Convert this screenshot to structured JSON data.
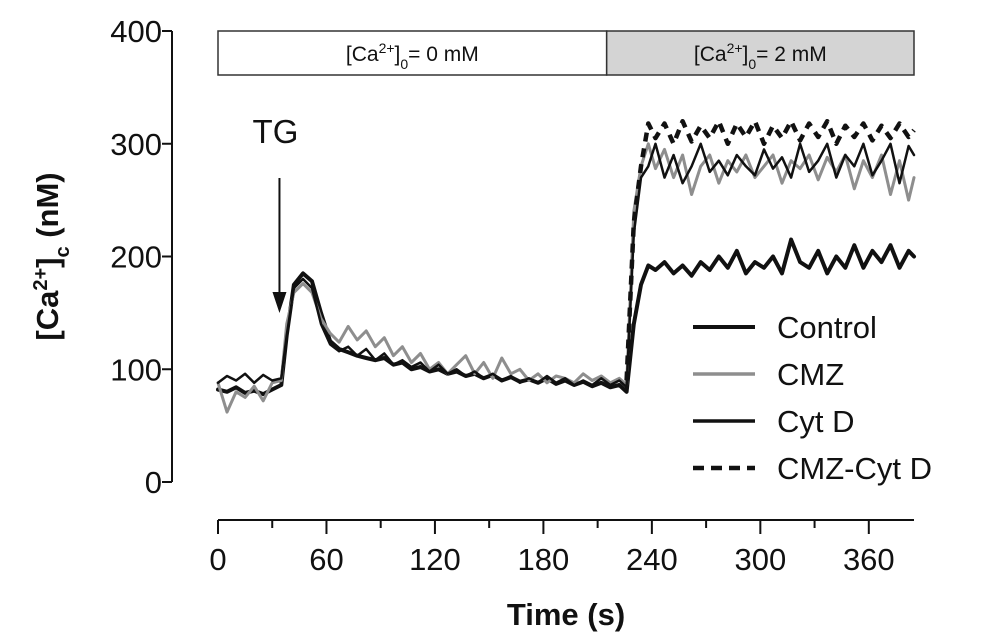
{
  "chart_data": {
    "type": "line",
    "title": "",
    "xlabel": "Time (s)",
    "ylabel": "[Ca2+]c (nM)",
    "ylabel_parts": {
      "pre": "[Ca",
      "sup": "2+",
      "mid": "]",
      "sub": "c",
      "post": " (nM)"
    },
    "xlim": [
      0,
      385
    ],
    "ylim": [
      0,
      400
    ],
    "x_ticks": [
      0,
      60,
      120,
      180,
      240,
      300,
      360
    ],
    "y_ticks": [
      0,
      100,
      200,
      300,
      400
    ],
    "grid": false,
    "legend_position": "bottom-right",
    "bands": [
      {
        "x0": 0,
        "x1": 215,
        "fill": "#ffffff",
        "label_parts": {
          "pre": "[Ca",
          "sup": "2+",
          "mid": "]",
          "sub": "0",
          "post": "= 0 mM"
        }
      },
      {
        "x0": 215,
        "x1": 385,
        "fill": "#d4d4d4",
        "label_parts": {
          "pre": "[Ca",
          "sup": "2+",
          "mid": "]",
          "sub": "0",
          "post": "= 2 mM"
        }
      }
    ],
    "annotations": [
      {
        "text": "TG",
        "x": 34
      }
    ],
    "series": [
      {
        "name": "Control",
        "color": "#111111",
        "style": "solid",
        "width": 4,
        "points": [
          [
            0,
            82
          ],
          [
            5,
            80
          ],
          [
            10,
            84
          ],
          [
            15,
            79
          ],
          [
            20,
            81
          ],
          [
            25,
            78
          ],
          [
            30,
            82
          ],
          [
            35,
            86
          ],
          [
            38,
            130
          ],
          [
            42,
            175
          ],
          [
            47,
            185
          ],
          [
            52,
            178
          ],
          [
            57,
            150
          ],
          [
            62,
            125
          ],
          [
            67,
            118
          ],
          [
            72,
            115
          ],
          [
            77,
            112
          ],
          [
            82,
            110
          ],
          [
            87,
            108
          ],
          [
            92,
            110
          ],
          [
            97,
            104
          ],
          [
            102,
            106
          ],
          [
            107,
            100
          ],
          [
            112,
            102
          ],
          [
            117,
            98
          ],
          [
            122,
            100
          ],
          [
            127,
            96
          ],
          [
            132,
            98
          ],
          [
            137,
            94
          ],
          [
            142,
            96
          ],
          [
            147,
            92
          ],
          [
            152,
            95
          ],
          [
            157,
            90
          ],
          [
            162,
            93
          ],
          [
            167,
            89
          ],
          [
            172,
            91
          ],
          [
            177,
            88
          ],
          [
            182,
            92
          ],
          [
            187,
            87
          ],
          [
            192,
            90
          ],
          [
            197,
            86
          ],
          [
            202,
            89
          ],
          [
            207,
            85
          ],
          [
            212,
            88
          ],
          [
            217,
            84
          ],
          [
            222,
            86
          ],
          [
            226,
            80
          ],
          [
            230,
            140
          ],
          [
            234,
            175
          ],
          [
            238,
            192
          ],
          [
            242,
            188
          ],
          [
            247,
            195
          ],
          [
            252,
            185
          ],
          [
            257,
            192
          ],
          [
            262,
            183
          ],
          [
            267,
            195
          ],
          [
            272,
            188
          ],
          [
            277,
            200
          ],
          [
            282,
            190
          ],
          [
            287,
            205
          ],
          [
            292,
            185
          ],
          [
            297,
            195
          ],
          [
            302,
            190
          ],
          [
            307,
            200
          ],
          [
            312,
            185
          ],
          [
            317,
            215
          ],
          [
            322,
            195
          ],
          [
            327,
            190
          ],
          [
            332,
            205
          ],
          [
            337,
            185
          ],
          [
            342,
            200
          ],
          [
            347,
            190
          ],
          [
            352,
            210
          ],
          [
            357,
            190
          ],
          [
            362,
            205
          ],
          [
            367,
            195
          ],
          [
            372,
            210
          ],
          [
            377,
            190
          ],
          [
            382,
            205
          ],
          [
            385,
            200
          ]
        ]
      },
      {
        "name": "CMZ",
        "color": "#8e8e8e",
        "style": "solid",
        "width": 3,
        "points": [
          [
            0,
            88
          ],
          [
            5,
            62
          ],
          [
            10,
            80
          ],
          [
            15,
            75
          ],
          [
            20,
            85
          ],
          [
            25,
            72
          ],
          [
            30,
            88
          ],
          [
            35,
            90
          ],
          [
            38,
            140
          ],
          [
            42,
            168
          ],
          [
            47,
            176
          ],
          [
            52,
            168
          ],
          [
            57,
            145
          ],
          [
            62,
            132
          ],
          [
            67,
            124
          ],
          [
            72,
            138
          ],
          [
            77,
            126
          ],
          [
            82,
            134
          ],
          [
            87,
            120
          ],
          [
            92,
            128
          ],
          [
            97,
            112
          ],
          [
            102,
            120
          ],
          [
            107,
            106
          ],
          [
            112,
            114
          ],
          [
            117,
            100
          ],
          [
            122,
            106
          ],
          [
            127,
            96
          ],
          [
            132,
            104
          ],
          [
            137,
            112
          ],
          [
            142,
            96
          ],
          [
            147,
            106
          ],
          [
            152,
            92
          ],
          [
            157,
            110
          ],
          [
            162,
            96
          ],
          [
            167,
            100
          ],
          [
            172,
            90
          ],
          [
            177,
            96
          ],
          [
            182,
            88
          ],
          [
            187,
            94
          ],
          [
            192,
            92
          ],
          [
            197,
            88
          ],
          [
            202,
            96
          ],
          [
            207,
            90
          ],
          [
            212,
            94
          ],
          [
            217,
            88
          ],
          [
            222,
            92
          ],
          [
            226,
            86
          ],
          [
            230,
            240
          ],
          [
            234,
            280
          ],
          [
            238,
            300
          ],
          [
            242,
            278
          ],
          [
            247,
            295
          ],
          [
            252,
            270
          ],
          [
            257,
            290
          ],
          [
            262,
            255
          ],
          [
            267,
            280
          ],
          [
            272,
            290
          ],
          [
            277,
            265
          ],
          [
            282,
            285
          ],
          [
            287,
            275
          ],
          [
            292,
            290
          ],
          [
            297,
            270
          ],
          [
            302,
            280
          ],
          [
            307,
            290
          ],
          [
            312,
            265
          ],
          [
            317,
            285
          ],
          [
            322,
            278
          ],
          [
            327,
            290
          ],
          [
            332,
            268
          ],
          [
            337,
            288
          ],
          [
            342,
            275
          ],
          [
            347,
            290
          ],
          [
            352,
            260
          ],
          [
            357,
            285
          ],
          [
            362,
            270
          ],
          [
            367,
            290
          ],
          [
            372,
            255
          ],
          [
            377,
            285
          ],
          [
            382,
            250
          ],
          [
            385,
            270
          ]
        ]
      },
      {
        "name": "Cyt D",
        "color": "#111111",
        "style": "solid",
        "width": 2.5,
        "points": [
          [
            0,
            88
          ],
          [
            5,
            94
          ],
          [
            10,
            90
          ],
          [
            15,
            96
          ],
          [
            20,
            88
          ],
          [
            25,
            95
          ],
          [
            30,
            90
          ],
          [
            35,
            92
          ],
          [
            38,
            130
          ],
          [
            42,
            172
          ],
          [
            47,
            180
          ],
          [
            52,
            172
          ],
          [
            57,
            140
          ],
          [
            62,
            122
          ],
          [
            67,
            116
          ],
          [
            72,
            120
          ],
          [
            77,
            112
          ],
          [
            82,
            118
          ],
          [
            87,
            108
          ],
          [
            92,
            114
          ],
          [
            97,
            104
          ],
          [
            102,
            108
          ],
          [
            107,
            102
          ],
          [
            112,
            106
          ],
          [
            117,
            98
          ],
          [
            122,
            104
          ],
          [
            127,
            96
          ],
          [
            132,
            100
          ],
          [
            137,
            94
          ],
          [
            142,
            98
          ],
          [
            147,
            92
          ],
          [
            152,
            96
          ],
          [
            157,
            90
          ],
          [
            162,
            94
          ],
          [
            167,
            88
          ],
          [
            172,
            92
          ],
          [
            177,
            88
          ],
          [
            182,
            94
          ],
          [
            187,
            88
          ],
          [
            192,
            92
          ],
          [
            197,
            86
          ],
          [
            202,
            90
          ],
          [
            207,
            86
          ],
          [
            212,
            92
          ],
          [
            217,
            86
          ],
          [
            222,
            90
          ],
          [
            226,
            84
          ],
          [
            230,
            220
          ],
          [
            234,
            270
          ],
          [
            238,
            280
          ],
          [
            242,
            300
          ],
          [
            247,
            270
          ],
          [
            252,
            290
          ],
          [
            257,
            265
          ],
          [
            262,
            280
          ],
          [
            267,
            300
          ],
          [
            272,
            275
          ],
          [
            277,
            285
          ],
          [
            282,
            272
          ],
          [
            287,
            290
          ],
          [
            292,
            280
          ],
          [
            297,
            272
          ],
          [
            302,
            295
          ],
          [
            307,
            278
          ],
          [
            312,
            288
          ],
          [
            317,
            270
          ],
          [
            322,
            300
          ],
          [
            327,
            275
          ],
          [
            332,
            285
          ],
          [
            337,
            300
          ],
          [
            342,
            270
          ],
          [
            347,
            290
          ],
          [
            352,
            280
          ],
          [
            357,
            300
          ],
          [
            362,
            272
          ],
          [
            367,
            285
          ],
          [
            372,
            300
          ],
          [
            377,
            265
          ],
          [
            382,
            298
          ],
          [
            385,
            290
          ]
        ]
      },
      {
        "name": "CMZ-Cyt D",
        "color": "#111111",
        "style": "dashed",
        "width": 4.5,
        "points": [
          [
            226,
            90
          ],
          [
            230,
            230
          ],
          [
            234,
            280
          ],
          [
            238,
            318
          ],
          [
            242,
            305
          ],
          [
            247,
            318
          ],
          [
            252,
            300
          ],
          [
            257,
            320
          ],
          [
            262,
            302
          ],
          [
            267,
            316
          ],
          [
            272,
            305
          ],
          [
            277,
            320
          ],
          [
            282,
            300
          ],
          [
            287,
            318
          ],
          [
            292,
            306
          ],
          [
            297,
            320
          ],
          [
            302,
            300
          ],
          [
            307,
            316
          ],
          [
            312,
            305
          ],
          [
            317,
            320
          ],
          [
            322,
            303
          ],
          [
            327,
            318
          ],
          [
            332,
            306
          ],
          [
            337,
            320
          ],
          [
            342,
            300
          ],
          [
            347,
            316
          ],
          [
            352,
            306
          ],
          [
            357,
            318
          ],
          [
            362,
            303
          ],
          [
            367,
            316
          ],
          [
            372,
            305
          ],
          [
            377,
            318
          ],
          [
            382,
            306
          ],
          [
            385,
            312
          ]
        ]
      }
    ]
  }
}
